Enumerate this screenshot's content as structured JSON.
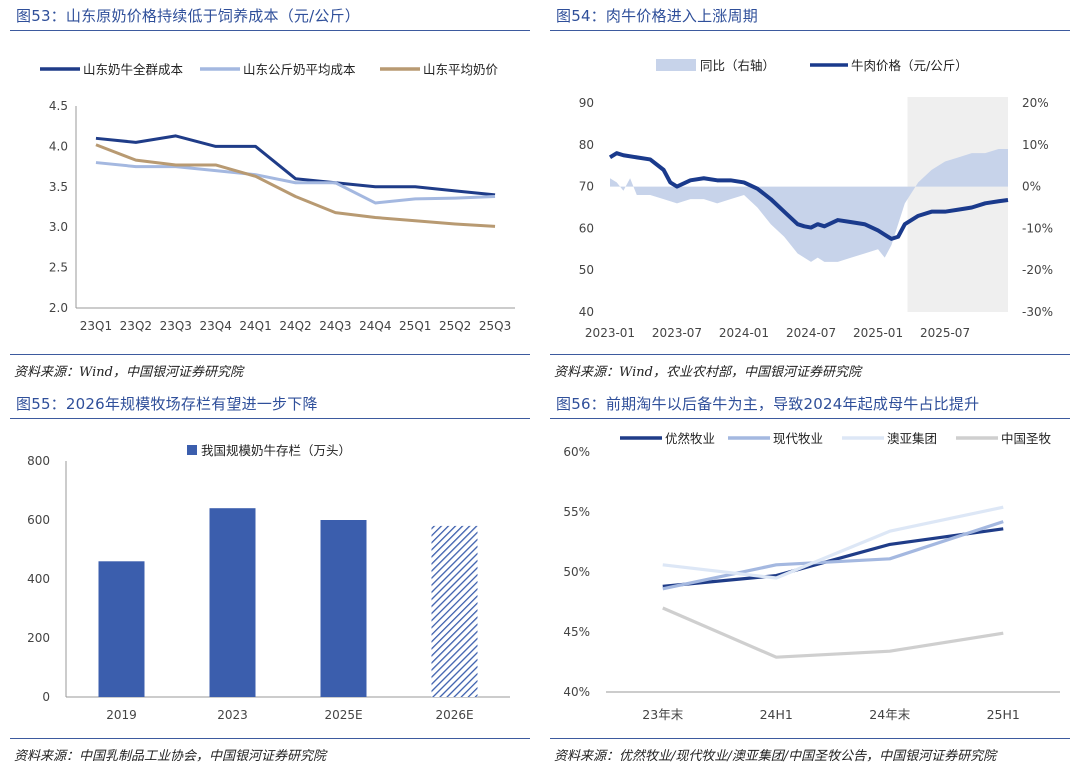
{
  "charts": [
    {
      "title": "图53：山东原奶价格持续低于饲养成本（元/公斤）",
      "source": "资料来源：Wind，中国银河证券研究院",
      "chart_data": {
        "type": "line",
        "categories": [
          "23Q1",
          "23Q2",
          "23Q3",
          "23Q4",
          "24Q1",
          "24Q2",
          "24Q3",
          "24Q4",
          "25Q1",
          "25Q2",
          "25Q3"
        ],
        "ylim": [
          2.0,
          4.5
        ],
        "yticks": [
          "2.0",
          "2.5",
          "3.0",
          "3.5",
          "4.0",
          "4.5"
        ],
        "series": [
          {
            "name": "山东奶牛全群成本",
            "color": "#1f3c88",
            "values": [
              4.1,
              4.05,
              4.13,
              4.0,
              4.0,
              3.6,
              3.55,
              3.5,
              3.5,
              3.45,
              3.4
            ]
          },
          {
            "name": "山东公斤奶平均成本",
            "color": "#a4b8e0",
            "values": [
              3.8,
              3.75,
              3.75,
              3.7,
              3.65,
              3.55,
              3.55,
              3.3,
              3.35,
              3.36,
              3.38
            ]
          },
          {
            "name": "山东平均奶价",
            "color": "#b89a72",
            "values": [
              4.02,
              3.83,
              3.77,
              3.77,
              3.63,
              3.38,
              3.18,
              3.12,
              3.08,
              3.04,
              3.01
            ]
          }
        ]
      }
    },
    {
      "title": "图54：肉牛价格进入上涨周期",
      "source": "资料来源：Wind，农业农村部，中国银河证券研究院",
      "chart_data": {
        "type": "line",
        "xticks": [
          "2023-01",
          "2023-07",
          "2024-01",
          "2024-07",
          "2025-01",
          "2025-07"
        ],
        "ylim": [
          40,
          90
        ],
        "yticks": [
          "40",
          "50",
          "60",
          "70",
          "80",
          "90"
        ],
        "y2lim": [
          -30,
          20
        ],
        "y2ticks": [
          "-30%",
          "-20%",
          "-10%",
          "0%",
          "10%",
          "20%"
        ],
        "series": [
          {
            "name": "同比（右轴）",
            "type": "area",
            "color": "#c7d3ea",
            "x": [
              2023.0,
              2023.05,
              2023.1,
              2023.15,
              2023.2,
              2023.3,
              2023.4,
              2023.5,
              2023.6,
              2023.7,
              2023.8,
              2023.9,
              2024.0,
              2024.1,
              2024.2,
              2024.3,
              2024.4,
              2024.5,
              2024.55,
              2024.6,
              2024.7,
              2024.8,
              2024.9,
              2025.0,
              2025.05,
              2025.1,
              2025.15,
              2025.2,
              2025.3,
              2025.4,
              2025.5,
              2025.6,
              2025.7,
              2025.8,
              2025.9,
              2025.97
            ],
            "values": [
              2,
              1,
              -1,
              2,
              -2,
              -2,
              -3,
              -4,
              -3,
              -3,
              -4,
              -3,
              -2,
              -5,
              -9,
              -12,
              -16,
              -18,
              -17,
              -18,
              -18,
              -17,
              -16,
              -15,
              -17,
              -14,
              -9,
              -4,
              1,
              4,
              6,
              7,
              8,
              8,
              9,
              9
            ]
          },
          {
            "name": "牛肉价格（元/公斤）",
            "type": "line",
            "color": "#1a3a8c",
            "x": [
              2023.0,
              2023.05,
              2023.1,
              2023.2,
              2023.3,
              2023.4,
              2023.45,
              2023.5,
              2023.6,
              2023.7,
              2023.8,
              2023.9,
              2024.0,
              2024.1,
              2024.2,
              2024.3,
              2024.4,
              2024.45,
              2024.5,
              2024.55,
              2024.6,
              2024.7,
              2024.8,
              2024.9,
              2025.0,
              2025.05,
              2025.1,
              2025.15,
              2025.2,
              2025.3,
              2025.4,
              2025.5,
              2025.6,
              2025.7,
              2025.8,
              2025.9,
              2025.97
            ],
            "values": [
              77,
              78,
              77.5,
              77,
              76.5,
              74,
              71,
              70,
              71.5,
              72,
              71.5,
              71.5,
              71,
              69.5,
              67,
              64,
              61,
              60.5,
              60.2,
              61,
              60.5,
              62,
              61.5,
              61,
              59.5,
              58.5,
              57.5,
              58,
              61,
              63,
              64,
              64,
              64.5,
              65,
              66,
              66.5,
              66.8
            ]
          }
        ]
      }
    },
    {
      "title": "图55：2026年规模牧场存栏有望进一步下降",
      "source": "资料来源：中国乳制品工业协会，中国银河证券研究院",
      "chart_data": {
        "type": "bar",
        "categories": [
          "2019",
          "2023",
          "2025E",
          "2026E"
        ],
        "values": [
          460,
          640,
          600,
          580
        ],
        "ylim": [
          0,
          800
        ],
        "yticks": [
          "0",
          "200",
          "400",
          "600",
          "800"
        ],
        "legend": "我国规模奶牛存栏（万头）",
        "color": "#3b5ead"
      }
    },
    {
      "title": "图56：前期淘牛以后备牛为主，导致2024年起成母牛占比提升",
      "source": "资料来源：优然牧业/现代牧业/澳亚集团/中国圣牧公告，中国银河证券研究院",
      "chart_data": {
        "type": "line",
        "categories": [
          "23年末",
          "24H1",
          "24年末",
          "25H1"
        ],
        "ylim": [
          40,
          60
        ],
        "yticks": [
          "40%",
          "45%",
          "50%",
          "55%",
          "60%"
        ],
        "series": [
          {
            "name": "优然牧业",
            "color": "#1f3c88",
            "values": [
              48.8,
              49.7,
              52.3,
              53.6
            ]
          },
          {
            "name": "现代牧业",
            "color": "#a4b8e0",
            "values": [
              48.6,
              50.6,
              51.1,
              54.2
            ]
          },
          {
            "name": "澳亚集团",
            "color": "#dde7f6",
            "values": [
              50.6,
              49.5,
              53.4,
              55.4
            ]
          },
          {
            "name": "中国圣牧",
            "color": "#cfcfcf",
            "values": [
              47.0,
              42.9,
              43.4,
              44.9
            ]
          }
        ]
      }
    }
  ]
}
